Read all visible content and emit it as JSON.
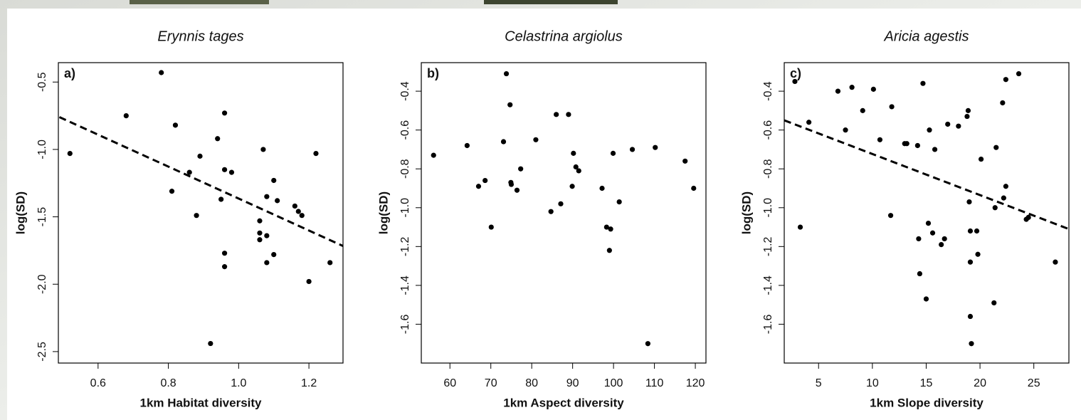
{
  "chart_data": [
    {
      "type": "scatter",
      "title": "Erynnis tages",
      "panel_label": "a)",
      "xlabel": "1km Habitat diversity",
      "ylabel": "log(SD)",
      "color": "#000000",
      "x": [
        0.52,
        0.78,
        0.68,
        0.82,
        0.81,
        0.86,
        0.89,
        0.88,
        0.94,
        0.96,
        0.96,
        0.98,
        0.95,
        0.96,
        0.96,
        0.92,
        1.07,
        1.1,
        1.08,
        1.11,
        1.06,
        1.06,
        1.06,
        1.08,
        1.1,
        1.08,
        1.16,
        1.17,
        1.18,
        1.22,
        1.2,
        1.26
      ],
      "y": [
        -1.03,
        -0.43,
        -0.75,
        -0.82,
        -1.31,
        -1.17,
        -1.05,
        -1.49,
        -0.92,
        -0.73,
        -1.15,
        -1.17,
        -1.37,
        -1.77,
        -1.87,
        -2.44,
        -1.0,
        -1.23,
        -1.35,
        -1.38,
        -1.53,
        -1.62,
        -1.67,
        -1.64,
        -1.78,
        -1.84,
        -1.42,
        -1.46,
        -1.49,
        -1.03,
        -1.98,
        -1.84
      ],
      "trend_line": {
        "x": [
          0.49,
          1.3
        ],
        "y": [
          -0.76,
          -1.72
        ]
      },
      "xlim": [
        0.487,
        1.297
      ],
      "ylim": [
        -2.585,
        -0.356
      ],
      "xticks": [
        0.6,
        0.8,
        {
          "value": 1,
          "label": "1.0"
        },
        1.2
      ],
      "yticks": [
        -0.5,
        {
          "value": -1,
          "label": "-1.0"
        },
        -1.5,
        {
          "value": -2,
          "label": "-2.0"
        },
        -2.5
      ]
    },
    {
      "type": "scatter",
      "title": "Celastrina argiolus",
      "panel_label": "b)",
      "xlabel": "1km Aspect diversity",
      "ylabel": "log(SD)",
      "color": "#000000",
      "x": [
        56.0,
        64.2,
        73.8,
        74.7,
        73.1,
        68.6,
        67.0,
        74.9,
        75.0,
        76.4,
        77.3,
        70.1,
        81.0,
        86.0,
        89.0,
        90.2,
        90.8,
        91.5,
        89.9,
        87.1,
        84.7,
        97.2,
        98.3,
        99.3,
        99.0,
        99.9,
        101.4,
        104.6,
        110.2,
        108.4,
        117.5,
        119.6
      ],
      "y": [
        -0.73,
        -0.68,
        -0.31,
        -0.47,
        -0.66,
        -0.86,
        -0.89,
        -0.87,
        -0.88,
        -0.91,
        -0.8,
        -1.1,
        -0.65,
        -0.52,
        -0.52,
        -0.72,
        -0.79,
        -0.81,
        -0.89,
        -0.98,
        -1.02,
        -0.9,
        -1.1,
        -1.11,
        -1.22,
        -0.72,
        -0.97,
        -0.7,
        -0.69,
        -1.7,
        -0.76,
        -0.9
      ],
      "xlim": [
        53.0,
        122.6
      ],
      "ylim": [
        -1.8,
        -0.253
      ],
      "xticks": [
        60,
        70,
        80,
        90,
        100,
        110,
        120
      ],
      "yticks": [
        -0.4,
        -0.6,
        -0.8,
        {
          "value": -1,
          "label": "-1.0"
        },
        -1.2,
        -1.4,
        -1.6
      ]
    },
    {
      "type": "scatter",
      "title": "Aricia agestis",
      "panel_label": "c)",
      "xlabel": "1km Slope diversity",
      "ylabel": "log(SD)",
      "color": "#000000",
      "x": [
        2.8,
        3.3,
        4.1,
        6.8,
        7.5,
        8.1,
        9.1,
        10.1,
        10.7,
        11.8,
        11.7,
        13.0,
        13.2,
        14.2,
        14.7,
        15.0,
        14.3,
        14.4,
        15.3,
        15.8,
        15.2,
        15.6,
        16.7,
        16.4,
        17.0,
        18.0,
        18.8,
        18.9,
        19.0,
        19.1,
        19.1,
        19.1,
        19.2,
        19.7,
        19.8,
        20.1,
        21.5,
        21.3,
        21.4,
        22.1,
        22.2,
        22.4,
        22.4,
        23.6,
        24.3,
        24.5,
        27.0
      ],
      "y": [
        -0.35,
        -1.1,
        -0.56,
        -0.4,
        -0.6,
        -0.38,
        -0.5,
        -0.39,
        -0.65,
        -0.48,
        -1.04,
        -0.67,
        -0.67,
        -0.68,
        -0.36,
        -1.47,
        -1.16,
        -1.34,
        -0.6,
        -0.7,
        -1.08,
        -1.13,
        -1.16,
        -1.19,
        -0.57,
        -0.58,
        -0.53,
        -0.5,
        -0.97,
        -1.12,
        -1.28,
        -1.56,
        -1.7,
        -1.12,
        -1.24,
        -0.75,
        -0.69,
        -1.49,
        -1.0,
        -0.46,
        -0.95,
        -0.34,
        -0.89,
        -0.31,
        -1.06,
        -1.05,
        -1.28
      ],
      "trend_line": {
        "x": [
          1.81,
          28.26
        ],
        "y": [
          -0.55,
          -1.11
        ]
      },
      "xlim": [
        1.81,
        28.26
      ],
      "ylim": [
        -1.8,
        -0.253
      ],
      "xticks": [
        5,
        10,
        15,
        20,
        25
      ],
      "yticks": [
        -0.4,
        -0.6,
        -0.8,
        {
          "value": -1,
          "label": "-1.0"
        },
        -1.2,
        -1.4,
        -1.6
      ]
    }
  ]
}
